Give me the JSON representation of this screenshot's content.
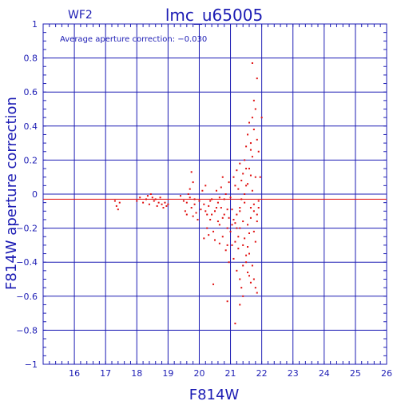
{
  "chart_data": {
    "type": "scatter",
    "title": "lmc_u65005",
    "chip_label": "WF2",
    "annotation": "Average aperture correction: −0.030",
    "xlabel": "F814W",
    "ylabel": "F814W aperture correction",
    "xlim": [
      15,
      26
    ],
    "ylim": [
      -1,
      1
    ],
    "x_ticks": [
      16,
      17,
      18,
      19,
      20,
      21,
      22,
      23,
      24,
      25,
      26
    ],
    "y_ticks": [
      -1,
      -0.8,
      -0.6,
      -0.4,
      -0.2,
      0,
      0.2,
      0.4,
      0.6,
      0.8,
      1
    ],
    "x_tick_labels": [
      "16",
      "17",
      "18",
      "19",
      "20",
      "21",
      "22",
      "23",
      "24",
      "25",
      "26"
    ],
    "y_tick_labels": [
      "−1",
      "−0.8",
      "−0.6",
      "−0.4",
      "−0.2",
      "0",
      "0.2",
      "0.4",
      "0.6",
      "0.8",
      "1"
    ],
    "grid": true,
    "average_line": -0.03,
    "colors": {
      "frame": "#1c1cb4",
      "points": "#e01010",
      "average_line": "#e01010"
    },
    "points": [
      [
        17.3,
        -0.04
      ],
      [
        17.35,
        -0.07
      ],
      [
        17.4,
        -0.09
      ],
      [
        17.45,
        -0.05
      ],
      [
        18.0,
        -0.04
      ],
      [
        18.1,
        -0.02
      ],
      [
        18.2,
        -0.05
      ],
      [
        18.3,
        -0.03
      ],
      [
        18.35,
        -0.01
      ],
      [
        18.4,
        -0.06
      ],
      [
        18.45,
        0.0
      ],
      [
        18.5,
        -0.02
      ],
      [
        18.55,
        -0.04
      ],
      [
        18.6,
        -0.03
      ],
      [
        18.65,
        -0.07
      ],
      [
        18.7,
        -0.05
      ],
      [
        18.75,
        -0.02
      ],
      [
        18.8,
        -0.06
      ],
      [
        18.85,
        -0.08
      ],
      [
        18.9,
        -0.05
      ],
      [
        18.95,
        -0.07
      ],
      [
        19.0,
        -0.06
      ],
      [
        19.4,
        -0.01
      ],
      [
        19.5,
        -0.04
      ],
      [
        19.55,
        -0.1
      ],
      [
        19.6,
        -0.05
      ],
      [
        19.65,
        0.0
      ],
      [
        19.7,
        -0.02
      ],
      [
        19.75,
        -0.08
      ],
      [
        19.8,
        -0.13
      ],
      [
        19.85,
        -0.03
      ],
      [
        19.9,
        -0.11
      ],
      [
        19.95,
        -0.15
      ],
      [
        19.6,
        -0.12
      ],
      [
        19.7,
        0.03
      ],
      [
        19.75,
        0.13
      ],
      [
        19.8,
        0.07
      ],
      [
        19.85,
        -0.06
      ],
      [
        20.0,
        -0.04
      ],
      [
        20.1,
        0.02
      ],
      [
        20.15,
        -0.06
      ],
      [
        20.2,
        -0.1
      ],
      [
        20.25,
        -0.2
      ],
      [
        20.3,
        -0.07
      ],
      [
        20.35,
        -0.15
      ],
      [
        20.4,
        -0.03
      ],
      [
        20.45,
        -0.22
      ],
      [
        20.5,
        -0.1
      ],
      [
        20.55,
        0.02
      ],
      [
        20.6,
        -0.05
      ],
      [
        20.65,
        -0.18
      ],
      [
        20.7,
        -0.08
      ],
      [
        20.75,
        -0.25
      ],
      [
        20.8,
        -0.12
      ],
      [
        20.85,
        0.0
      ],
      [
        20.9,
        -0.3
      ],
      [
        20.95,
        -0.14
      ],
      [
        20.2,
        0.05
      ],
      [
        20.3,
        -0.24
      ],
      [
        20.4,
        -0.12
      ],
      [
        20.5,
        -0.27
      ],
      [
        20.6,
        -0.16
      ],
      [
        20.7,
        0.04
      ],
      [
        20.8,
        -0.03
      ],
      [
        20.9,
        -0.2
      ],
      [
        20.45,
        -0.53
      ],
      [
        20.65,
        -0.29
      ],
      [
        20.75,
        0.1
      ],
      [
        20.85,
        -0.33
      ],
      [
        20.95,
        -0.4
      ],
      [
        20.9,
        -0.63
      ],
      [
        21.0,
        -0.02
      ],
      [
        21.05,
        -0.09
      ],
      [
        21.1,
        -0.15
      ],
      [
        21.15,
        0.05
      ],
      [
        21.2,
        -0.2
      ],
      [
        21.25,
        -0.25
      ],
      [
        21.3,
        -0.1
      ],
      [
        21.35,
        0.08
      ],
      [
        21.4,
        -0.3
      ],
      [
        21.45,
        -0.05
      ],
      [
        21.5,
        0.15
      ],
      [
        21.55,
        -0.18
      ],
      [
        21.6,
        -0.35
      ],
      [
        21.65,
        -0.08
      ],
      [
        21.7,
        0.02
      ],
      [
        21.75,
        -0.22
      ],
      [
        21.8,
        -0.28
      ],
      [
        21.85,
        -0.12
      ],
      [
        21.9,
        -0.04
      ],
      [
        21.1,
        -0.38
      ],
      [
        21.2,
        -0.45
      ],
      [
        21.3,
        -0.5
      ],
      [
        21.35,
        -0.55
      ],
      [
        21.4,
        -0.6
      ],
      [
        21.5,
        -0.4
      ],
      [
        21.55,
        -0.46
      ],
      [
        21.6,
        -0.48
      ],
      [
        21.65,
        -0.52
      ],
      [
        21.7,
        -0.42
      ],
      [
        21.75,
        -0.5
      ],
      [
        21.8,
        -0.55
      ],
      [
        21.85,
        -0.58
      ],
      [
        21.3,
        -0.65
      ],
      [
        21.15,
        -0.76
      ],
      [
        21.2,
        0.14
      ],
      [
        21.3,
        0.18
      ],
      [
        21.4,
        0.12
      ],
      [
        21.45,
        0.2
      ],
      [
        21.5,
        0.28
      ],
      [
        21.55,
        0.35
      ],
      [
        21.6,
        0.42
      ],
      [
        21.65,
        0.3
      ],
      [
        21.7,
        0.45
      ],
      [
        21.75,
        0.38
      ],
      [
        21.8,
        0.5
      ],
      [
        21.85,
        0.32
      ],
      [
        21.9,
        0.25
      ],
      [
        21.6,
        0.15
      ],
      [
        21.7,
        0.22
      ],
      [
        21.8,
        0.1
      ],
      [
        21.5,
        0.05
      ],
      [
        21.65,
        0.26
      ],
      [
        21.75,
        0.55
      ],
      [
        21.85,
        0.68
      ],
      [
        21.7,
        0.77
      ],
      [
        21.2,
        -0.12
      ],
      [
        21.3,
        -0.2
      ],
      [
        21.4,
        -0.16
      ],
      [
        21.45,
        -0.26
      ],
      [
        21.55,
        -0.31
      ],
      [
        21.65,
        -0.14
      ],
      [
        21.75,
        -0.06
      ],
      [
        21.6,
        -0.23
      ],
      [
        21.5,
        -0.36
      ],
      [
        21.4,
        -0.42
      ],
      [
        21.25,
        -0.32
      ],
      [
        21.15,
        -0.28
      ],
      [
        21.05,
        -0.18
      ],
      [
        20.95,
        0.07
      ],
      [
        21.1,
        0.1
      ],
      [
        21.25,
        0.03
      ],
      [
        21.35,
        -0.03
      ],
      [
        21.45,
        0.0
      ],
      [
        21.55,
        0.06
      ],
      [
        21.65,
        0.11
      ],
      [
        21.75,
        -0.1
      ],
      [
        21.85,
        -0.16
      ],
      [
        20.55,
        -0.08
      ],
      [
        20.65,
        -0.02
      ],
      [
        20.75,
        -0.14
      ],
      [
        20.25,
        -0.12
      ],
      [
        20.35,
        -0.04
      ],
      [
        20.15,
        -0.26
      ],
      [
        20.05,
        -0.09
      ],
      [
        20.9,
        -0.09
      ],
      [
        21.0,
        -0.22
      ],
      [
        21.05,
        -0.3
      ],
      [
        21.15,
        -0.17
      ],
      [
        21.3,
        -0.08
      ],
      [
        22.0,
        0.45
      ],
      [
        21.95,
        0.1
      ],
      [
        21.9,
        -0.08
      ]
    ]
  }
}
